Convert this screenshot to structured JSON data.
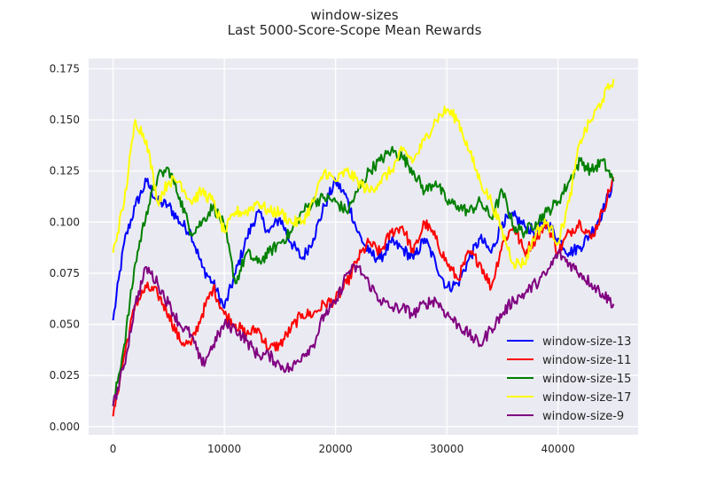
{
  "chart_data": {
    "type": "line",
    "title": "window-sizes",
    "subtitle": "Last 5000-Score-Scope Mean Rewards",
    "xlabel": "",
    "ylabel": "",
    "xlim": [
      -2200,
      47200
    ],
    "ylim": [
      -0.004,
      0.18
    ],
    "xticks": [
      0,
      10000,
      20000,
      30000,
      40000
    ],
    "yticks": [
      0.0,
      0.025,
      0.05,
      0.075,
      0.1,
      0.125,
      0.15,
      0.175
    ],
    "xtick_labels": [
      "0",
      "10000",
      "20000",
      "30000",
      "40000"
    ],
    "ytick_labels": [
      "0.000",
      "0.025",
      "0.050",
      "0.075",
      "0.100",
      "0.125",
      "0.150",
      "0.175"
    ],
    "grid": true,
    "background": "#eaeaf2",
    "legend_position": "lower-right",
    "x": [
      0,
      1000,
      2000,
      3000,
      4000,
      5000,
      6000,
      7000,
      8000,
      9000,
      10000,
      11000,
      12000,
      13000,
      14000,
      15000,
      16000,
      17000,
      18000,
      19000,
      20000,
      21000,
      22000,
      23000,
      24000,
      25000,
      26000,
      27000,
      28000,
      29000,
      30000,
      31000,
      32000,
      33000,
      34000,
      35000,
      36000,
      37000,
      38000,
      39000,
      40000,
      41000,
      42000,
      43000,
      44000,
      45000
    ],
    "series": [
      {
        "name": "window-size-13",
        "color": "#0000ff",
        "values": [
          0.052,
          0.09,
          0.108,
          0.12,
          0.11,
          0.108,
          0.1,
          0.095,
          0.078,
          0.07,
          0.058,
          0.075,
          0.092,
          0.105,
          0.095,
          0.102,
          0.09,
          0.082,
          0.092,
          0.108,
          0.12,
          0.112,
          0.095,
          0.085,
          0.082,
          0.09,
          0.087,
          0.082,
          0.092,
          0.08,
          0.068,
          0.07,
          0.082,
          0.092,
          0.085,
          0.1,
          0.103,
          0.098,
          0.095,
          0.1,
          0.092,
          0.085,
          0.088,
          0.095,
          0.105,
          0.12
        ]
      },
      {
        "name": "window-size-11",
        "color": "#ff0000",
        "values": [
          0.005,
          0.035,
          0.06,
          0.068,
          0.065,
          0.055,
          0.042,
          0.04,
          0.055,
          0.068,
          0.055,
          0.05,
          0.045,
          0.048,
          0.038,
          0.04,
          0.048,
          0.055,
          0.055,
          0.06,
          0.062,
          0.07,
          0.082,
          0.09,
          0.085,
          0.095,
          0.098,
          0.085,
          0.1,
          0.092,
          0.08,
          0.072,
          0.085,
          0.08,
          0.068,
          0.09,
          0.098,
          0.085,
          0.092,
          0.1,
          0.085,
          0.095,
          0.1,
          0.092,
          0.105,
          0.122
        ]
      },
      {
        "name": "window-size-15",
        "color": "#008000",
        "values": [
          0.01,
          0.04,
          0.08,
          0.105,
          0.122,
          0.126,
          0.112,
          0.095,
          0.1,
          0.108,
          0.098,
          0.07,
          0.085,
          0.08,
          0.085,
          0.09,
          0.095,
          0.105,
          0.11,
          0.112,
          0.11,
          0.105,
          0.115,
          0.125,
          0.13,
          0.135,
          0.132,
          0.125,
          0.115,
          0.12,
          0.11,
          0.108,
          0.105,
          0.11,
          0.102,
          0.115,
          0.098,
          0.095,
          0.1,
          0.105,
          0.11,
          0.12,
          0.13,
          0.125,
          0.13,
          0.12
        ]
      },
      {
        "name": "window-size-17",
        "color": "#ffff00",
        "values": [
          0.085,
          0.11,
          0.15,
          0.14,
          0.11,
          0.12,
          0.12,
          0.11,
          0.115,
          0.11,
          0.095,
          0.105,
          0.105,
          0.11,
          0.105,
          0.105,
          0.1,
          0.1,
          0.11,
          0.125,
          0.12,
          0.125,
          0.12,
          0.115,
          0.12,
          0.125,
          0.135,
          0.13,
          0.14,
          0.15,
          0.155,
          0.15,
          0.135,
          0.12,
          0.11,
          0.095,
          0.08,
          0.08,
          0.095,
          0.1,
          0.09,
          0.11,
          0.14,
          0.15,
          0.16,
          0.17
        ]
      },
      {
        "name": "window-size-9",
        "color": "#800080",
        "values": [
          0.01,
          0.03,
          0.06,
          0.078,
          0.07,
          0.06,
          0.05,
          0.045,
          0.03,
          0.04,
          0.05,
          0.048,
          0.042,
          0.035,
          0.035,
          0.03,
          0.028,
          0.035,
          0.04,
          0.055,
          0.06,
          0.075,
          0.078,
          0.07,
          0.062,
          0.058,
          0.058,
          0.055,
          0.06,
          0.062,
          0.055,
          0.05,
          0.045,
          0.04,
          0.048,
          0.055,
          0.062,
          0.065,
          0.07,
          0.075,
          0.085,
          0.08,
          0.075,
          0.07,
          0.065,
          0.06
        ]
      }
    ]
  }
}
